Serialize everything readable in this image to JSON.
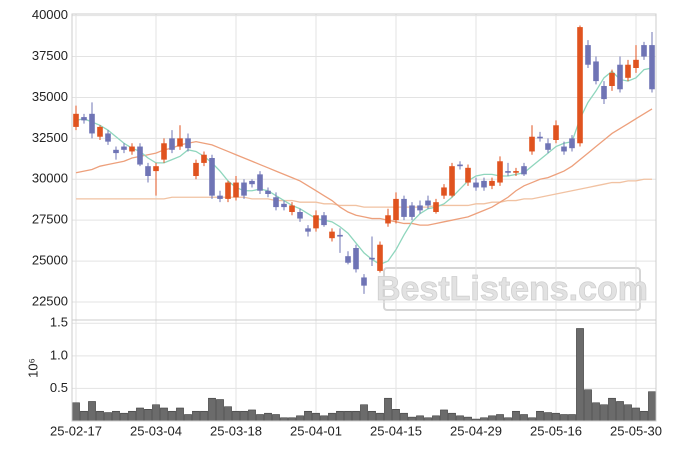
{
  "chart_data": {
    "type": "candlestick",
    "categories": [
      "25-02-17",
      null,
      null,
      null,
      null,
      null,
      null,
      null,
      null,
      null,
      "25-03-04",
      null,
      null,
      null,
      null,
      null,
      null,
      null,
      null,
      null,
      "25-03-18",
      null,
      null,
      null,
      null,
      null,
      null,
      null,
      null,
      null,
      "25-04-01",
      null,
      null,
      null,
      null,
      null,
      null,
      null,
      null,
      null,
      "25-04-15",
      null,
      null,
      null,
      null,
      null,
      null,
      null,
      null,
      null,
      "25-04-29",
      null,
      null,
      null,
      null,
      null,
      null,
      null,
      null,
      null,
      "25-05-16",
      null,
      null,
      null,
      null,
      null,
      null,
      null,
      null,
      null,
      "25-05-30",
      null,
      null
    ],
    "open": [
      33200,
      33800,
      34000,
      32600,
      32800,
      31800,
      32000,
      31700,
      32000,
      30800,
      30500,
      31200,
      32500,
      32000,
      32500,
      30200,
      31000,
      31300,
      29000,
      28800,
      28900,
      29800,
      29900,
      30300,
      29300,
      28900,
      28500,
      28000,
      28000,
      27000,
      27000,
      27800,
      26400,
      26600,
      25300,
      25800,
      24000,
      25200,
      24400,
      27300,
      27500,
      28800,
      28400,
      28400,
      28700,
      28000,
      29000,
      29000,
      30900,
      29800,
      29800,
      29900,
      29600,
      29800,
      30500,
      30400,
      30800,
      31700,
      32600,
      32200,
      32400,
      32000,
      32500,
      32200,
      38200,
      37200,
      35700,
      35700,
      37000,
      36200,
      36800,
      38200,
      38200
    ],
    "high": [
      34500,
      34000,
      34700,
      33300,
      33000,
      32000,
      32200,
      32200,
      32200,
      31000,
      31000,
      32500,
      33000,
      33300,
      32800,
      31200,
      31700,
      31500,
      29300,
      29900,
      30200,
      30000,
      30000,
      30500,
      29500,
      29200,
      28700,
      28600,
      28200,
      27200,
      28100,
      28000,
      27000,
      27000,
      25600,
      26000,
      24200,
      26500,
      26200,
      28200,
      29200,
      29000,
      28600,
      28700,
      29000,
      28800,
      29700,
      31000,
      31100,
      30900,
      30100,
      30100,
      30100,
      31400,
      31000,
      30700,
      31000,
      33300,
      32900,
      32500,
      33600,
      32300,
      32700,
      39400,
      38500,
      37500,
      36000,
      36700,
      37500,
      37300,
      38200,
      38400,
      39000
    ],
    "low": [
      33000,
      33400,
      32500,
      32400,
      32100,
      31200,
      31600,
      31500,
      30800,
      29800,
      29000,
      31000,
      31600,
      31800,
      31700,
      30000,
      30800,
      28800,
      28600,
      28600,
      28700,
      28800,
      29500,
      29100,
      28900,
      28100,
      28100,
      27800,
      27400,
      26500,
      26800,
      27100,
      26200,
      25500,
      24800,
      24300,
      23000,
      24700,
      24300,
      27100,
      27300,
      27500,
      27500,
      27900,
      28200,
      27900,
      28800,
      28900,
      30600,
      29600,
      29300,
      29300,
      29400,
      29600,
      30200,
      30200,
      30200,
      31500,
      32300,
      31600,
      32200,
      31500,
      31700,
      32000,
      36800,
      35800,
      34600,
      35400,
      35300,
      36000,
      36500,
      37300,
      35300
    ],
    "close": [
      34000,
      33600,
      32800,
      33200,
      32300,
      31600,
      31800,
      32000,
      30900,
      30200,
      30800,
      32200,
      31800,
      32500,
      31900,
      31000,
      31500,
      29000,
      28800,
      29800,
      29800,
      29000,
      29700,
      29300,
      29100,
      28300,
      28300,
      28400,
      27600,
      26800,
      27800,
      27200,
      26800,
      26500,
      24900,
      24500,
      23500,
      25100,
      26000,
      27800,
      28800,
      27700,
      27700,
      28100,
      28400,
      28600,
      29500,
      30800,
      30800,
      30700,
      29500,
      29500,
      29900,
      31100,
      30400,
      30500,
      30300,
      32600,
      32500,
      31800,
      33300,
      31700,
      31900,
      39300,
      37000,
      36000,
      34900,
      36500,
      35500,
      37000,
      37300,
      37500,
      35500
    ],
    "up_color": "#e0531f",
    "down_color": "#6f74b5",
    "lines": [
      {
        "color": "#8fd6bd",
        "values": [
          33600,
          33700,
          33500,
          33300,
          33000,
          32600,
          32200,
          31900,
          31700,
          31300,
          31000,
          31000,
          31200,
          31400,
          31800,
          31700,
          31400,
          31000,
          30500,
          29900,
          29500,
          29300,
          29300,
          29400,
          29300,
          29000,
          28700,
          28400,
          28200,
          27900,
          27600,
          27500,
          27400,
          27100,
          26700,
          26100,
          25500,
          25100,
          24800,
          25000,
          25700,
          26600,
          27400,
          27900,
          28200,
          28300,
          28500,
          28900,
          29400,
          29900,
          30200,
          30300,
          30300,
          30200,
          30200,
          30300,
          30400,
          30800,
          31200,
          31600,
          32000,
          32200,
          32300,
          33700,
          34700,
          35400,
          36200,
          36600,
          36100,
          36000,
          36200,
          36700,
          36800
        ]
      },
      {
        "color": "#eda07c",
        "values": [
          30400,
          30500,
          30600,
          30800,
          30900,
          31000,
          31100,
          31300,
          31400,
          31500,
          31600,
          31800,
          31900,
          32100,
          32200,
          32300,
          32200,
          32100,
          31900,
          31700,
          31500,
          31300,
          31100,
          30900,
          30700,
          30500,
          30300,
          30100,
          29900,
          29600,
          29300,
          29000,
          28700,
          28300,
          28000,
          27800,
          27700,
          27600,
          27600,
          27500,
          27400,
          27300,
          27300,
          27200,
          27200,
          27300,
          27400,
          27500,
          27600,
          27700,
          27900,
          28100,
          28300,
          28600,
          28900,
          29300,
          29600,
          29800,
          30000,
          30100,
          30300,
          30500,
          30800,
          31200,
          31600,
          32000,
          32400,
          32800,
          33100,
          33400,
          33700,
          34000,
          34300
        ]
      },
      {
        "color": "#f1c2a2",
        "values": [
          28800,
          28800,
          28800,
          28800,
          28800,
          28800,
          28800,
          28800,
          28800,
          28800,
          28800,
          28800,
          28900,
          28900,
          28900,
          28900,
          28900,
          28900,
          28900,
          28900,
          28900,
          28900,
          28800,
          28800,
          28800,
          28700,
          28700,
          28700,
          28600,
          28600,
          28600,
          28500,
          28500,
          28400,
          28400,
          28400,
          28300,
          28300,
          28300,
          28300,
          28300,
          28300,
          28300,
          28300,
          28300,
          28400,
          28400,
          28400,
          28400,
          28400,
          28500,
          28500,
          28600,
          28600,
          28700,
          28700,
          28800,
          28800,
          28900,
          29000,
          29100,
          29200,
          29300,
          29400,
          29500,
          29600,
          29700,
          29800,
          29800,
          29900,
          29900,
          30000,
          30000
        ]
      }
    ],
    "ylim": [
      21400,
      40100
    ],
    "yticks": [
      22500,
      25000,
      27500,
      30000,
      32500,
      35000,
      37500,
      40000
    ],
    "volume": {
      "color": "#6b6b6b",
      "axis_label": "10⁶",
      "ylim": [
        0,
        1.55
      ],
      "yticks": [
        0.5,
        {
          "value": 1,
          "label": "1.0"
        },
        1.5
      ],
      "values": [
        0.28,
        0.15,
        0.3,
        0.15,
        0.13,
        0.15,
        0.12,
        0.15,
        0.2,
        0.18,
        0.25,
        0.2,
        0.15,
        0.2,
        0.1,
        0.15,
        0.15,
        0.35,
        0.33,
        0.22,
        0.15,
        0.15,
        0.17,
        0.1,
        0.12,
        0.1,
        0.05,
        0.05,
        0.08,
        0.15,
        0.12,
        0.08,
        0.12,
        0.15,
        0.15,
        0.15,
        0.25,
        0.15,
        0.12,
        0.35,
        0.18,
        0.12,
        0.06,
        0.08,
        0.05,
        0.08,
        0.17,
        0.12,
        0.08,
        0.06,
        0.03,
        0.05,
        0.08,
        0.1,
        0.05,
        0.15,
        0.1,
        0.05,
        0.15,
        0.13,
        0.12,
        0.1,
        0.1,
        1.42,
        0.48,
        0.28,
        0.25,
        0.35,
        0.3,
        0.25,
        0.2,
        0.15,
        0.45
      ]
    },
    "watermark": "BestListens.com",
    "grid": true
  }
}
